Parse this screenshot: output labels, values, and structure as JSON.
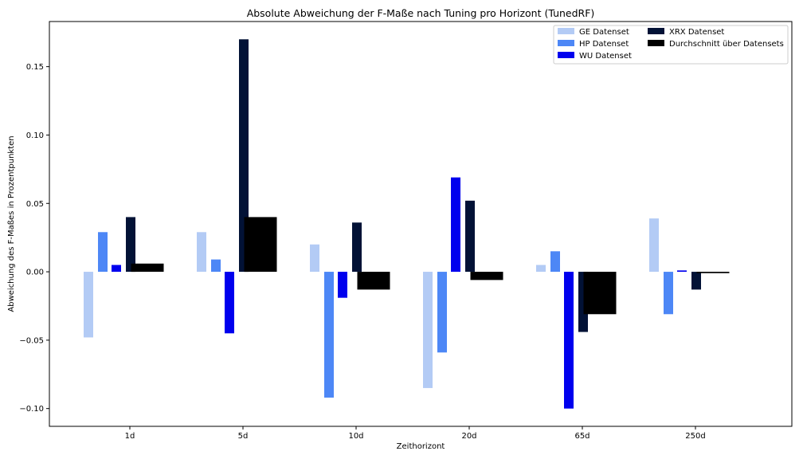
{
  "chart_data": {
    "type": "bar",
    "title": "Absolute Abweichung der F-Maße nach Tuning pro Horizont (TunedRF)",
    "xlabel": "Zeithorizont",
    "ylabel": "Abweichung des F-Maßes in Prozentpunkten",
    "categories": [
      "1d",
      "5d",
      "10d",
      "20d",
      "65d",
      "250d"
    ],
    "ylim": [
      -0.113,
      0.183
    ],
    "yticks": [
      -0.1,
      -0.05,
      0.0,
      0.05,
      0.1,
      0.15
    ],
    "ytick_labels": [
      "−0.10",
      "−0.05",
      "0.00",
      "0.05",
      "0.10",
      "0.15"
    ],
    "grid": false,
    "legend_position": "top-right",
    "legend_columns": 2,
    "series": [
      {
        "name": "GE Datenset",
        "color": "#b3cbf5",
        "values": [
          -0.048,
          0.029,
          0.02,
          -0.085,
          0.005,
          0.039
        ]
      },
      {
        "name": "HP Datenset",
        "color": "#4d87f6",
        "values": [
          0.029,
          0.009,
          -0.092,
          -0.059,
          0.015,
          -0.031
        ]
      },
      {
        "name": "WU Datenset",
        "color": "#0000ee",
        "values": [
          0.005,
          -0.045,
          -0.019,
          0.069,
          -0.1,
          0.001
        ]
      },
      {
        "name": "XRX Datenset",
        "color": "#021236",
        "values": [
          0.04,
          0.17,
          0.036,
          0.052,
          -0.044,
          -0.013
        ]
      },
      {
        "name": "Durchschnitt über Datensets",
        "color": "#000000",
        "values": [
          0.006,
          0.04,
          -0.013,
          -0.006,
          -0.031,
          -0.001
        ]
      }
    ]
  }
}
